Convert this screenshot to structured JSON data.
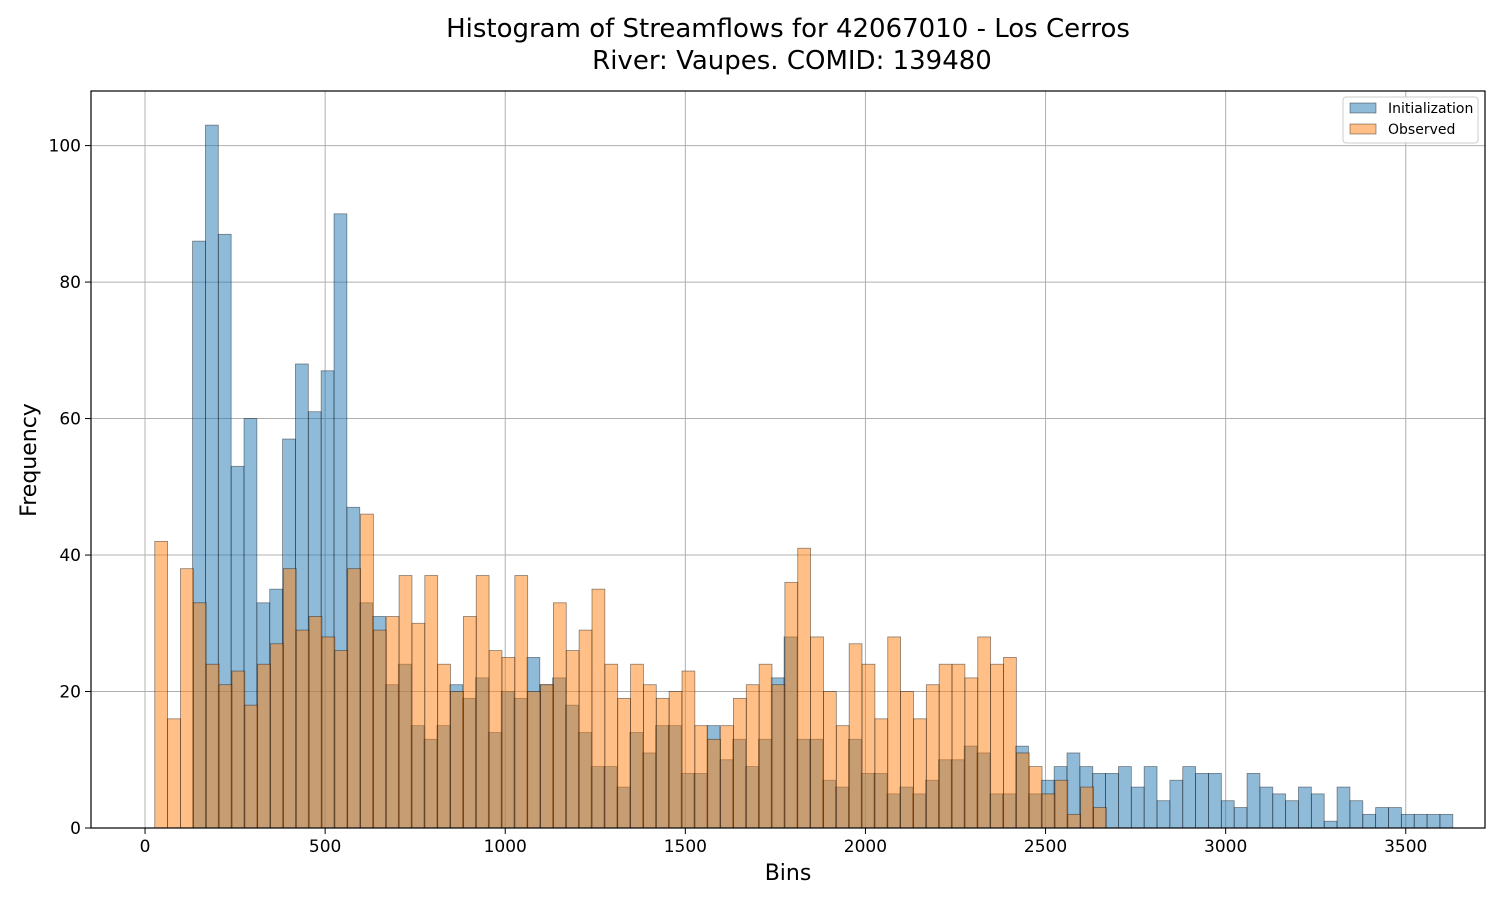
{
  "chart_data": {
    "type": "bar",
    "title_line1": "Histogram of Streamflows for 42067010 - Los Cerros",
    "title_line2": "River: Vaupes. COMID: 139480",
    "xlabel": "Bins",
    "ylabel": "Frequency",
    "xlim": [
      -150,
      3720
    ],
    "ylim": [
      0,
      108
    ],
    "x_ticks": [
      0,
      500,
      1000,
      1500,
      2000,
      2500,
      3000,
      3500
    ],
    "y_ticks": [
      0,
      20,
      40,
      60,
      80,
      100
    ],
    "grid": true,
    "legend_position": "top-right",
    "series": [
      {
        "name": "Initialization",
        "color": "#1f77b4",
        "bin_start": 132,
        "bin_width": 35.7,
        "values": [
          86,
          103,
          87,
          53,
          60,
          33,
          35,
          57,
          68,
          61,
          67,
          90,
          47,
          33,
          31,
          21,
          24,
          15,
          13,
          15,
          21,
          19,
          22,
          14,
          20,
          19,
          25,
          21,
          22,
          18,
          14,
          9,
          9,
          6,
          14,
          11,
          15,
          15,
          8,
          8,
          15,
          10,
          13,
          9,
          13,
          22,
          28,
          13,
          13,
          7,
          6,
          13,
          8,
          8,
          5,
          6,
          5,
          7,
          10,
          10,
          12,
          11,
          5,
          5,
          12,
          5,
          7,
          9,
          11,
          9,
          8,
          8,
          9,
          6,
          9,
          4,
          7,
          9,
          8,
          8,
          4,
          3,
          8,
          6,
          5,
          4,
          6,
          5,
          1,
          6,
          4,
          2,
          3,
          3,
          2,
          2,
          2,
          2
        ]
      },
      {
        "name": "Observed",
        "color": "#ff7f0e",
        "bin_start": 27,
        "bin_width": 35.7,
        "values": [
          42,
          16,
          38,
          33,
          24,
          21,
          23,
          18,
          24,
          27,
          38,
          29,
          31,
          28,
          26,
          38,
          46,
          29,
          31,
          37,
          30,
          37,
          24,
          20,
          31,
          37,
          26,
          25,
          37,
          20,
          21,
          33,
          26,
          29,
          35,
          24,
          19,
          24,
          21,
          19,
          20,
          23,
          15,
          13,
          15,
          19,
          21,
          24,
          21,
          36,
          41,
          28,
          20,
          15,
          27,
          24,
          16,
          28,
          20,
          16,
          21,
          24,
          24,
          22,
          28,
          24,
          25,
          11,
          9,
          5,
          7,
          2,
          6,
          3
        ]
      }
    ]
  }
}
